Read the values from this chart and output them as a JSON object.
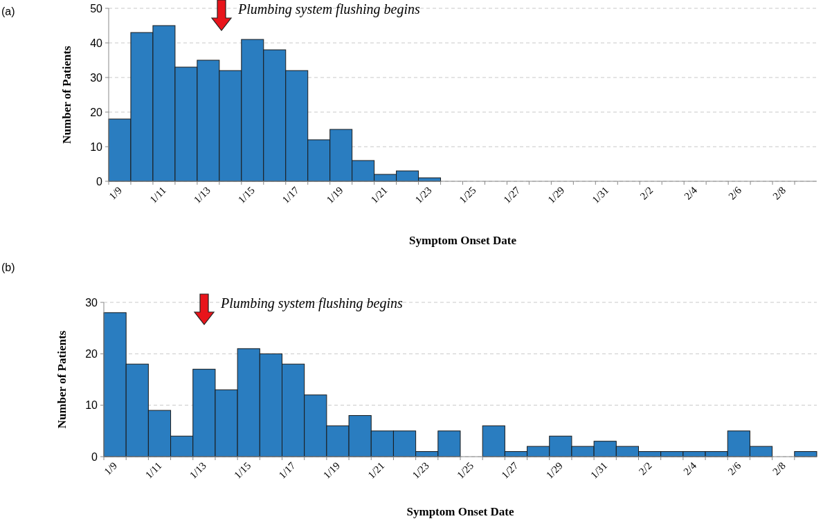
{
  "chart_data": [
    {
      "type": "bar",
      "xlabel": "Symptom Onset Date",
      "ylabel": "Number of Patients",
      "categories": [
        "1/9",
        null,
        "1/11",
        null,
        "1/13",
        null,
        "1/15",
        null,
        "1/17",
        null,
        "1/19",
        null,
        "1/21",
        null,
        "1/23",
        null,
        "1/25",
        null,
        "1/27",
        null,
        "1/29",
        null,
        "1/31",
        null,
        "2/2",
        null,
        "2/4",
        null,
        "2/6",
        null,
        "2/8",
        null
      ],
      "values": [
        18,
        43,
        45,
        33,
        35,
        32,
        41,
        38,
        32,
        12,
        15,
        6,
        2,
        3,
        1,
        0,
        0,
        0,
        0,
        0,
        0,
        0,
        0,
        0,
        0,
        0,
        0,
        0,
        0,
        0,
        0,
        0
      ],
      "color": "#2a7dc0",
      "ylim": [
        0,
        50
      ],
      "yticks": [
        0,
        10,
        20,
        30,
        40,
        50
      ],
      "grid": "y",
      "annotations": [
        "(a)",
        "Plumbing system flushing begins"
      ]
    },
    {
      "type": "bar",
      "xlabel": "Symptom Onset Date",
      "ylabel": "Number of Patients",
      "categories": [
        "1/9",
        null,
        "1/11",
        null,
        "1/13",
        null,
        "1/15",
        null,
        "1/17",
        null,
        "1/19",
        null,
        "1/21",
        null,
        "1/23",
        null,
        "1/25",
        null,
        "1/27",
        null,
        "1/29",
        null,
        "1/31",
        null,
        "2/2",
        null,
        "2/4",
        null,
        "2/6",
        null,
        "2/8",
        null
      ],
      "values": [
        28,
        18,
        9,
        4,
        17,
        13,
        21,
        20,
        18,
        12,
        6,
        8,
        5,
        5,
        1,
        5,
        0,
        6,
        1,
        2,
        4,
        2,
        3,
        2,
        1,
        1,
        1,
        1,
        5,
        2,
        0,
        1
      ],
      "color": "#2a7dc0",
      "ylim": [
        0,
        30
      ],
      "yticks": [
        0,
        10,
        20,
        30
      ],
      "grid": "y",
      "annotations": [
        "(b)",
        "Plumbing system flushing begins"
      ]
    }
  ]
}
